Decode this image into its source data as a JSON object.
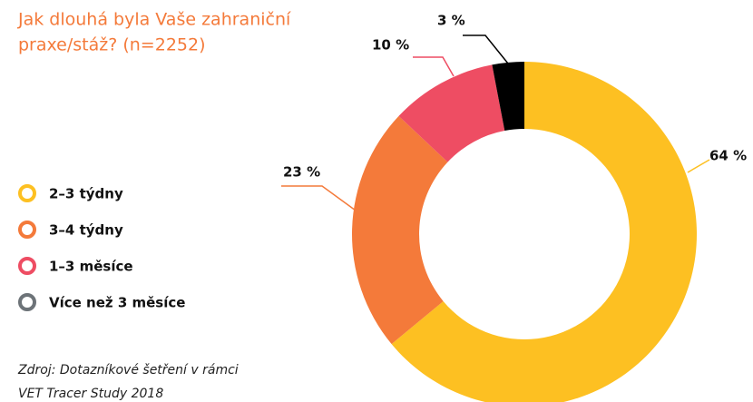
{
  "chart_data": {
    "type": "donut",
    "title": [
      "Jak dlouhá byla Vaše zahraniční",
      "praxe/stáž? (n=2252)"
    ],
    "categories": [
      "2–3 týdny",
      "3–4 týdny",
      "1–3 měsíce",
      "Více než 3 měsíce"
    ],
    "values": [
      64,
      23,
      10,
      3
    ],
    "value_labels": [
      "64 %",
      "23 %",
      "10 %",
      "3 %"
    ],
    "colors": [
      "#fdc022",
      "#f47a3a",
      "#ee4d63",
      "#000000"
    ],
    "legend_colors": [
      "#fdc022",
      "#f47a3a",
      "#ee4d63",
      "#6d7378"
    ],
    "source": [
      "Zdroj: Dotazníkové šetření v rámci",
      "VET Tracer Study 2018"
    ]
  }
}
